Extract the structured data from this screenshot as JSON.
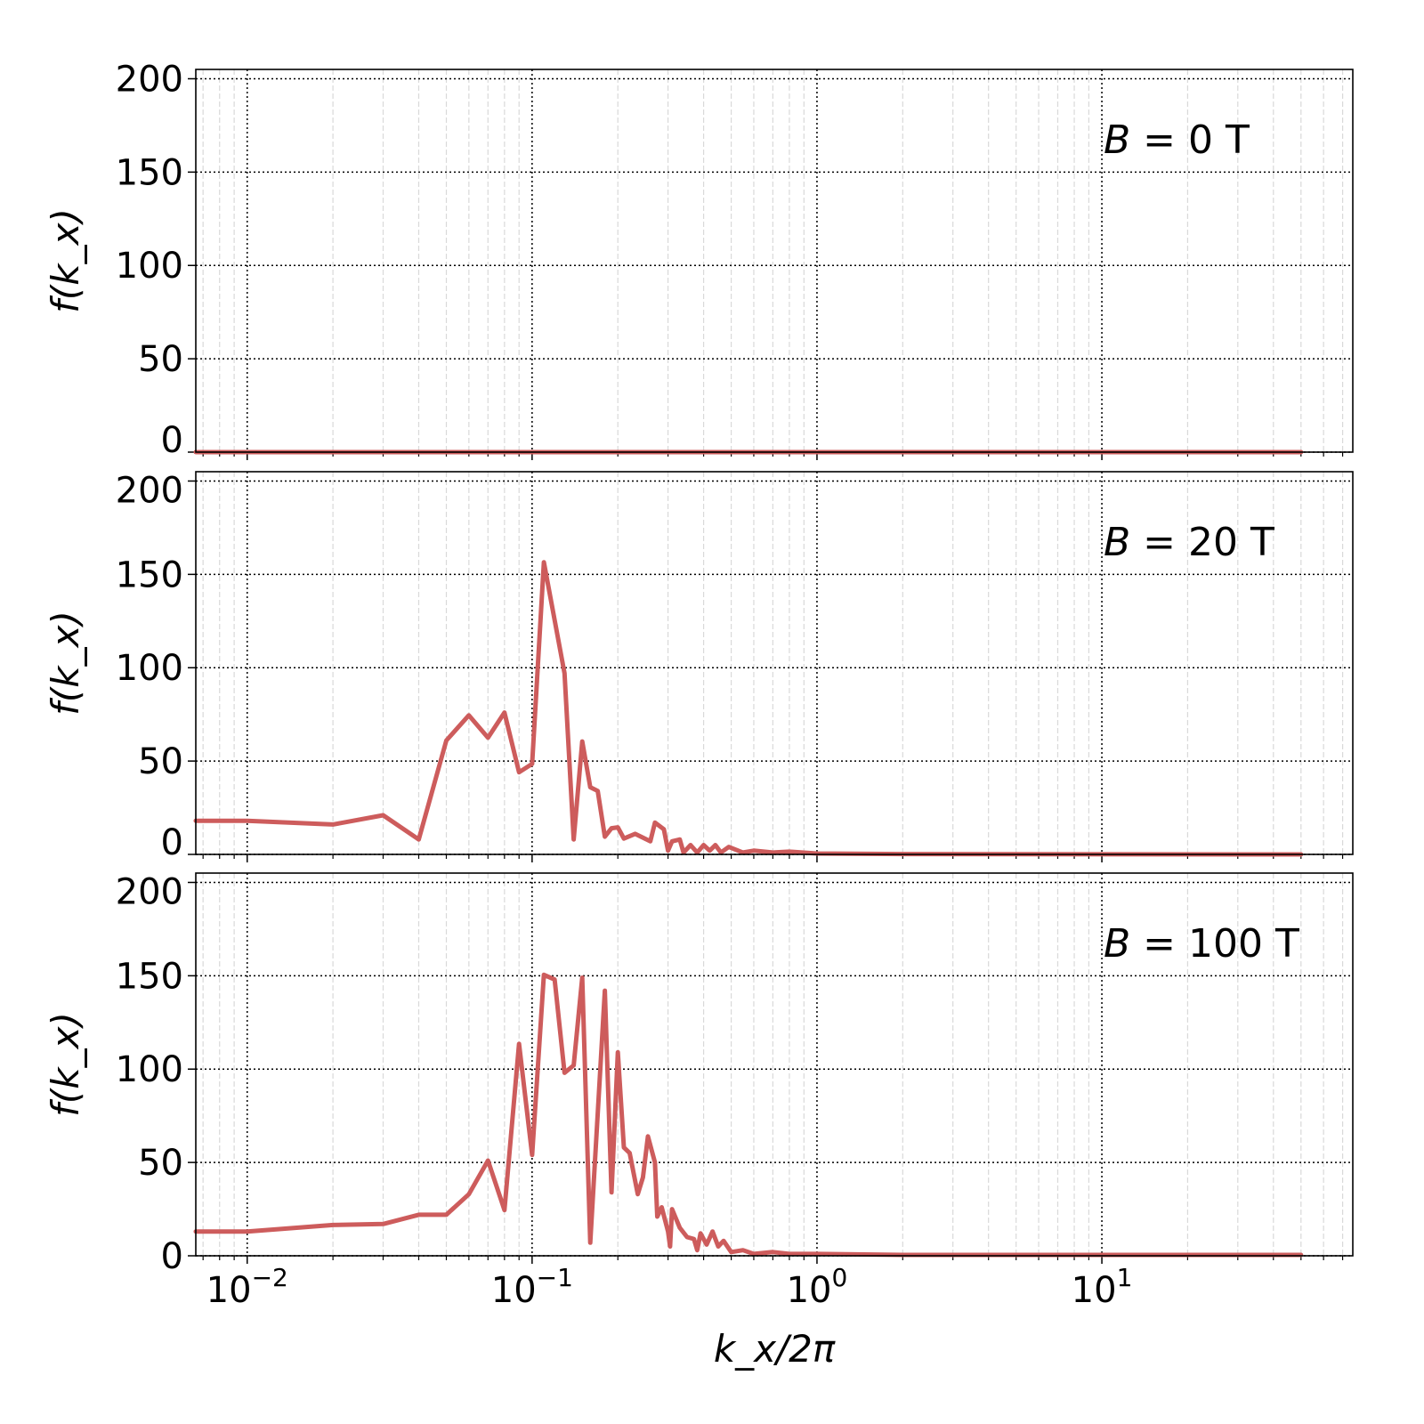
{
  "chart_data": {
    "type": "line",
    "layout": "3 stacked panels, shared x axis",
    "x_scale": "log",
    "xlim": [
      0.0066,
      76
    ],
    "xlabel": "k_x/2π",
    "x_ticks": [
      {
        "value": 0.01,
        "base": "10",
        "exp": "−2"
      },
      {
        "value": 0.1,
        "base": "10",
        "exp": "−1"
      },
      {
        "value": 1,
        "base": "10",
        "exp": "0"
      },
      {
        "value": 10,
        "base": "10",
        "exp": "1"
      }
    ],
    "ylabel": "f(k_x)",
    "ylim": [
      0,
      205
    ],
    "y_ticks": [
      "0",
      "50",
      "100",
      "150",
      "200"
    ],
    "grid": {
      "major": "dotted black",
      "minor_x": "light gray dashed"
    },
    "line_color": "#cd5c5c",
    "panels": [
      {
        "annotation": {
          "var": "B",
          "rest": " = 0 T"
        },
        "x": [
          0.0066,
          0.01,
          0.1,
          1,
          10,
          50
        ],
        "y": [
          0,
          0,
          0,
          0,
          0,
          0
        ]
      },
      {
        "annotation": {
          "var": "B",
          "rest": " = 20 T"
        },
        "x": [
          0.0066,
          0.01,
          0.02,
          0.03,
          0.04,
          0.05,
          0.06,
          0.07,
          0.08,
          0.09,
          0.1,
          0.11,
          0.13,
          0.14,
          0.15,
          0.16,
          0.17,
          0.18,
          0.19,
          0.2,
          0.21,
          0.23,
          0.26,
          0.27,
          0.29,
          0.3,
          0.31,
          0.33,
          0.34,
          0.36,
          0.38,
          0.4,
          0.42,
          0.44,
          0.46,
          0.49,
          0.55,
          0.6,
          0.7,
          0.8,
          1.0,
          2.0,
          50
        ],
        "y": [
          18,
          18,
          16,
          21,
          8,
          61,
          74.5,
          62.5,
          76,
          44,
          48.5,
          156.5,
          97,
          8,
          60.5,
          36,
          34,
          9.5,
          14,
          14.5,
          8.5,
          11,
          7,
          17,
          13.5,
          2,
          7,
          8,
          1,
          5,
          1,
          5,
          2,
          5,
          1,
          4,
          1,
          2,
          1,
          1.5,
          0.5,
          0.2,
          0
        ]
      },
      {
        "annotation": {
          "var": "B",
          "rest": " = 100 T"
        },
        "x": [
          0.0066,
          0.01,
          0.02,
          0.03,
          0.04,
          0.05,
          0.06,
          0.07,
          0.08,
          0.09,
          0.1,
          0.11,
          0.12,
          0.13,
          0.14,
          0.15,
          0.16,
          0.18,
          0.19,
          0.2,
          0.21,
          0.22,
          0.235,
          0.245,
          0.255,
          0.27,
          0.275,
          0.285,
          0.3,
          0.305,
          0.31,
          0.33,
          0.35,
          0.37,
          0.38,
          0.39,
          0.41,
          0.43,
          0.45,
          0.47,
          0.5,
          0.55,
          0.6,
          0.7,
          0.8,
          1.0,
          2.0,
          50
        ],
        "y": [
          13,
          13,
          16.5,
          17,
          22,
          22,
          33,
          51,
          24.5,
          113.5,
          54,
          150.5,
          148,
          98,
          102,
          149,
          7,
          142,
          34,
          109,
          58,
          55,
          33,
          42,
          64,
          50,
          21,
          26,
          13,
          5,
          25,
          15,
          10,
          9,
          3,
          12,
          6,
          13,
          5,
          8,
          2,
          3,
          1,
          2,
          1,
          1,
          0.5,
          0.5
        ]
      }
    ]
  }
}
